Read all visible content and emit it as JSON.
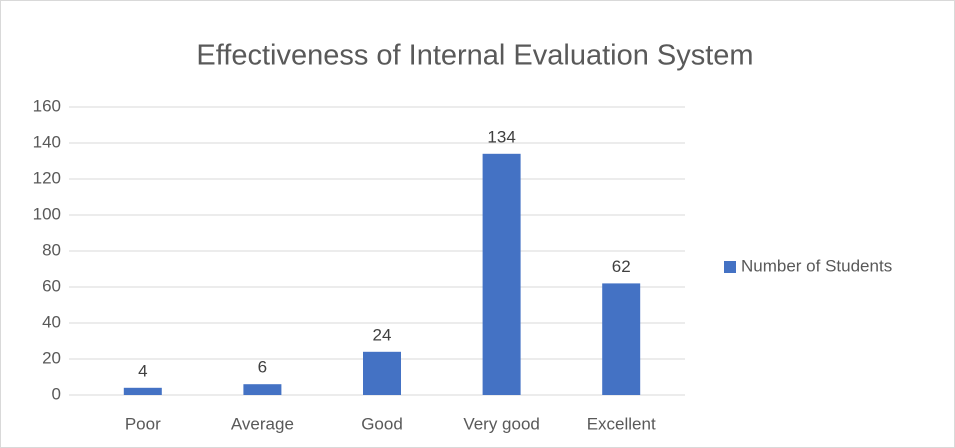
{
  "chart_data": {
    "type": "bar",
    "title": "Effectiveness of Internal Evaluation System",
    "categories": [
      "Poor",
      "Average",
      "Good",
      "Very good",
      "Excellent"
    ],
    "series": [
      {
        "name": "Number of Students",
        "color": "#4472c4",
        "values": [
          4,
          6,
          24,
          134,
          62
        ]
      }
    ],
    "ylim": [
      0,
      160
    ],
    "yticks": [
      0,
      20,
      40,
      60,
      80,
      100,
      120,
      140,
      160
    ],
    "grid": true,
    "legend": "right"
  }
}
